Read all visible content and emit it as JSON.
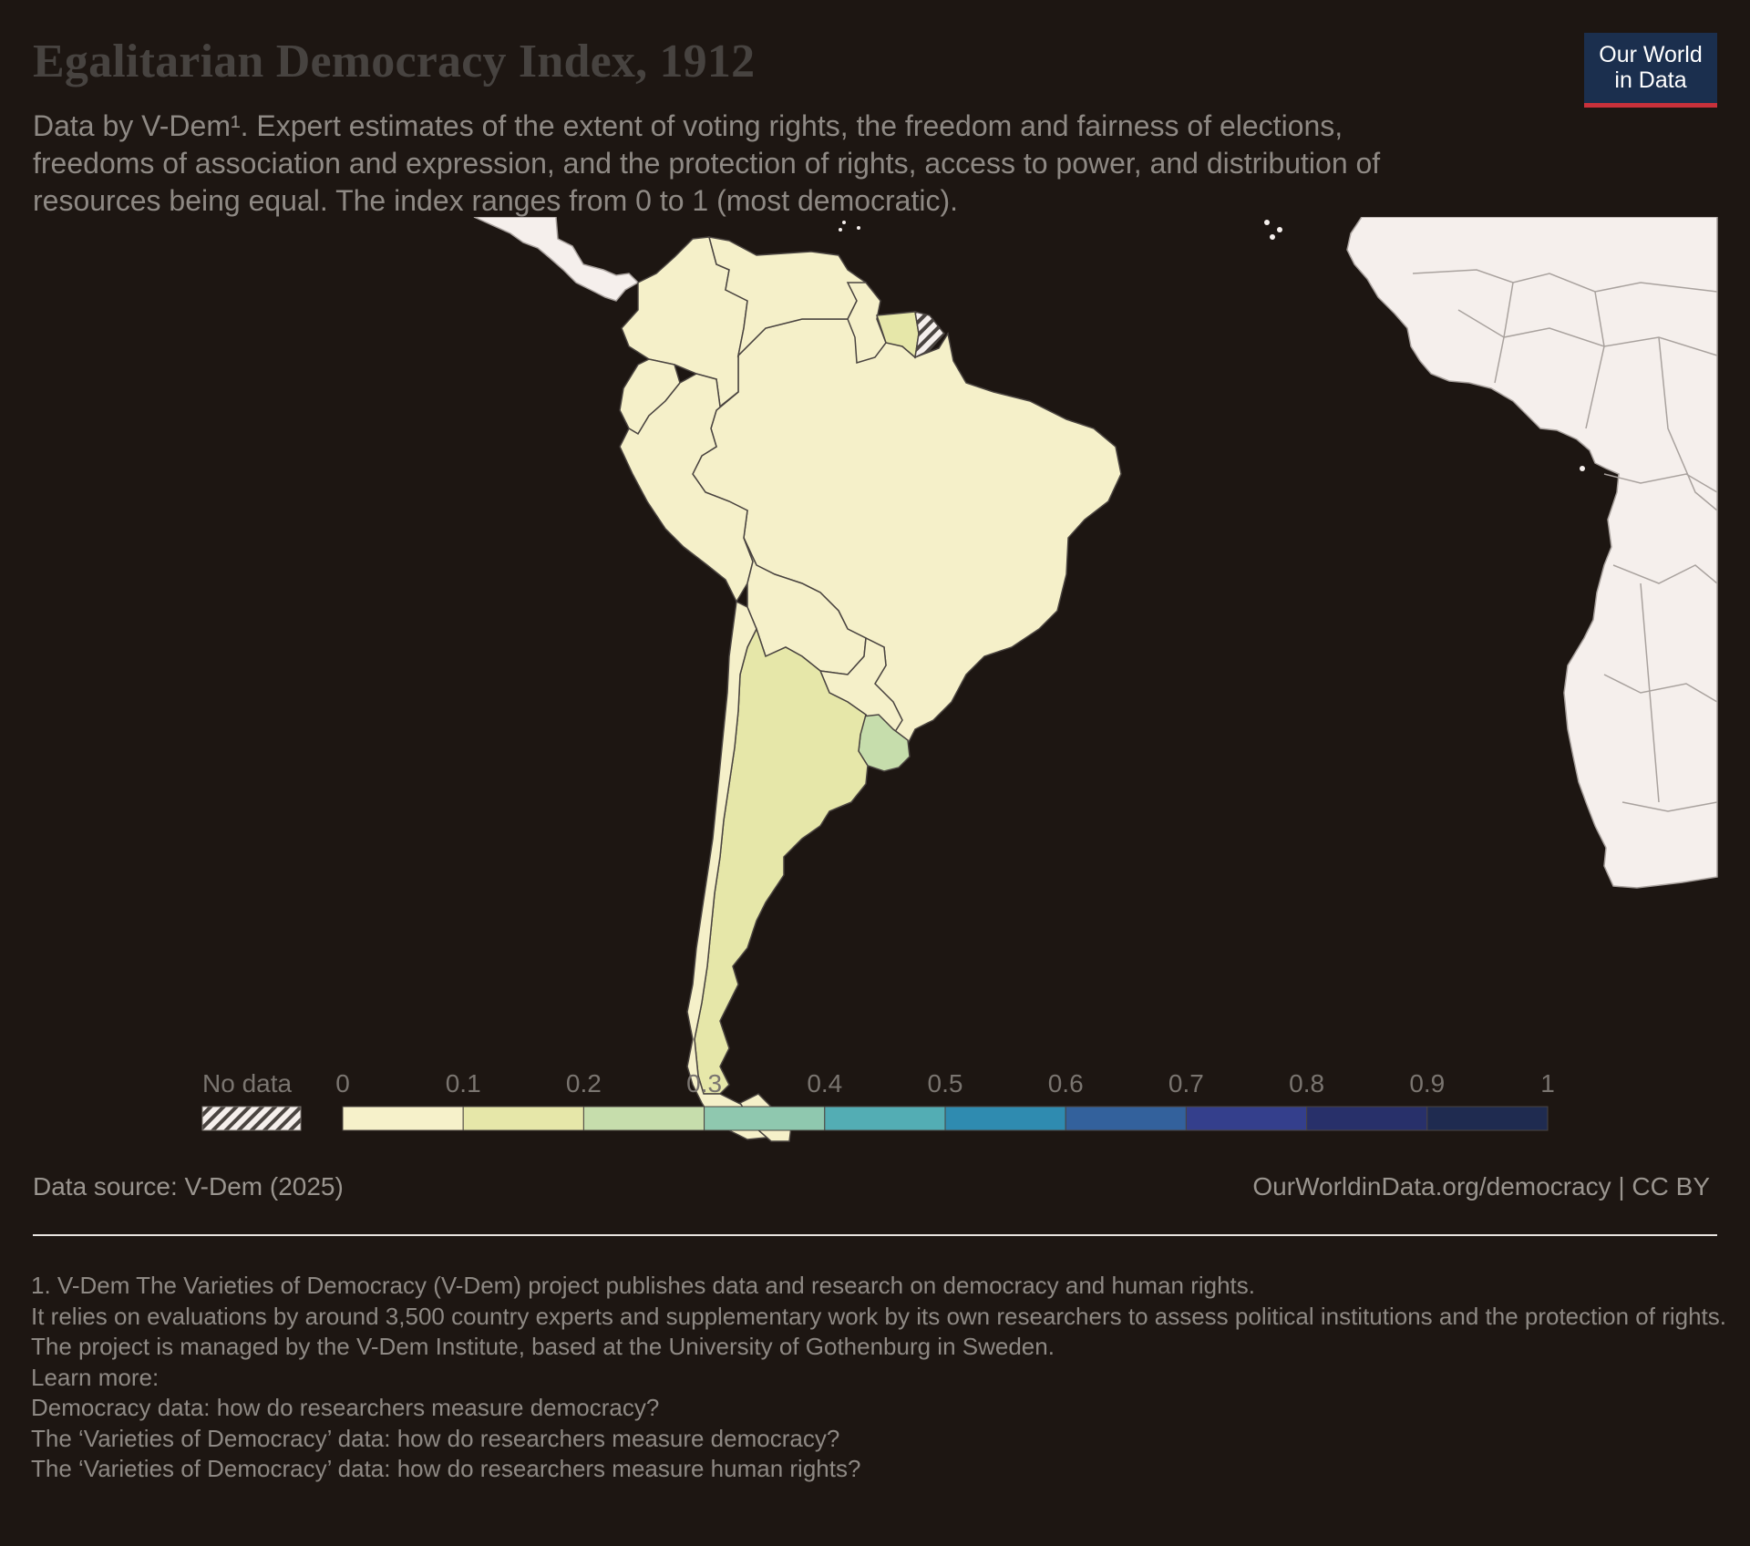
{
  "header": {
    "title": "Egalitarian Democracy Index, 1912",
    "subtitle_lines": [
      "Data by V-Dem¹. Expert estimates of the extent of voting rights, the freedom and fairness of elections,",
      "freedoms of association and expression, and the protection of rights, access to power, and distribution of",
      "resources being equal. The index ranges from 0 to 1 (most democratic)."
    ]
  },
  "logo": {
    "line1": "Our World",
    "line2": "in Data",
    "bg_color": "#1b2f4e",
    "accent_color": "#c8313b"
  },
  "legend": {
    "no_data_label": "No data",
    "ticks": [
      "0",
      "0.1",
      "0.2",
      "0.3",
      "0.4",
      "0.5",
      "0.6",
      "0.7",
      "0.8",
      "0.9",
      "1"
    ],
    "colors": [
      "#f6f1ca",
      "#e6e7a9",
      "#c6ddac",
      "#8fc8af",
      "#53adb4",
      "#2f8bb0",
      "#33619c",
      "#343f8c",
      "#28306a",
      "#1f2b50"
    ]
  },
  "map_data": {
    "year": 1912,
    "regions": [
      {
        "name": "Colombia",
        "value": 0.05
      },
      {
        "name": "Venezuela",
        "value": 0.05
      },
      {
        "name": "Guyana",
        "value": 0.05
      },
      {
        "name": "Suriname",
        "value": 0.12
      },
      {
        "name": "French Guiana",
        "value": null
      },
      {
        "name": "Ecuador",
        "value": 0.05
      },
      {
        "name": "Peru",
        "value": 0.05
      },
      {
        "name": "Brazil",
        "value": 0.06
      },
      {
        "name": "Bolivia",
        "value": 0.05
      },
      {
        "name": "Paraguay",
        "value": 0.05
      },
      {
        "name": "Chile",
        "value": 0.07
      },
      {
        "name": "Argentina",
        "value": 0.12
      },
      {
        "name": "Uruguay",
        "value": 0.22
      },
      {
        "name": "Central America",
        "value": null
      },
      {
        "name": "West Africa",
        "value": null
      }
    ],
    "no_data_fill": "#f5efec",
    "background": "#1d1612"
  },
  "footer": {
    "source": "Data source: V-Dem (2025)",
    "url": "OurWorldinData.org/democracy | CC BY",
    "notes": [
      "1. V-Dem The Varieties of Democracy (V-Dem) project publishes data and research on democracy and human rights.",
      "It relies on evaluations by around 3,500 country experts and supplementary work by its own researchers to assess political institutions and the protection of rights.",
      "The project is managed by the V-Dem Institute, based at the University of Gothenburg in Sweden.",
      "Learn more:",
      "Democracy data: how do researchers measure democracy?",
      "The ‘Varieties of Democracy’ data: how do researchers measure democracy?",
      "The ‘Varieties of Democracy’ data: how do researchers measure human rights?"
    ]
  }
}
